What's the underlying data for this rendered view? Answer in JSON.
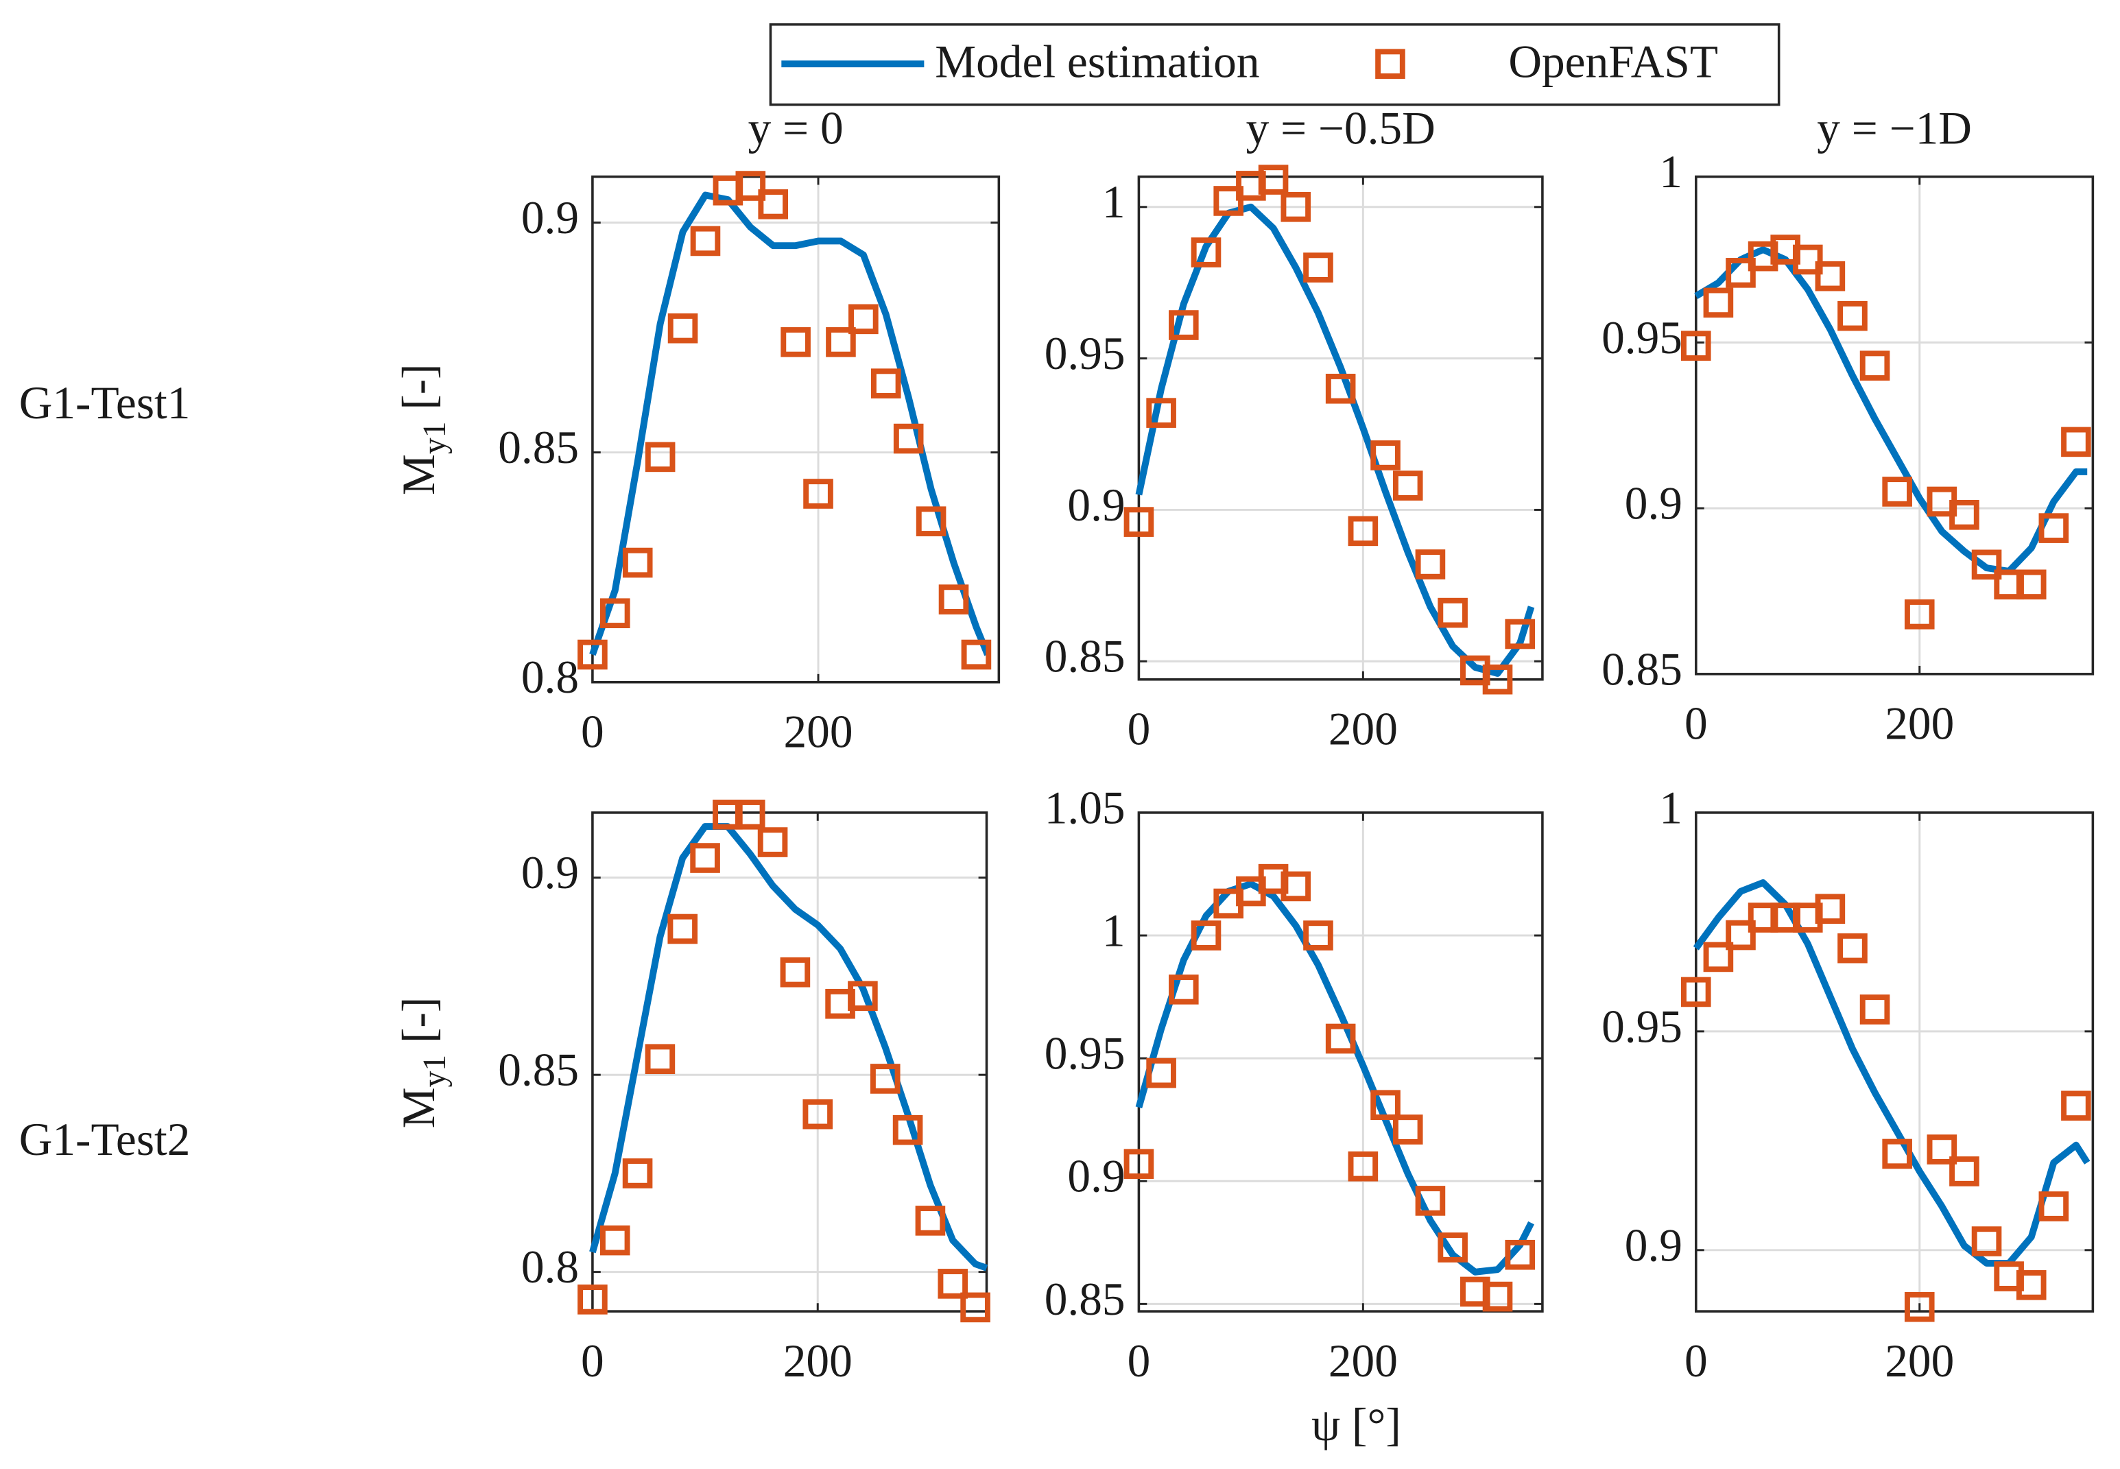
{
  "row_labels": [
    "G1-Test1",
    "G1-Test2"
  ],
  "y_label": {
    "main": "M",
    "sub": "y1",
    "unit": " [-]"
  },
  "x_label": "ψ  [°]",
  "chart_data": [
    {
      "type": "line",
      "title": "y = 0",
      "xlim": [
        0,
        360
      ],
      "xticks": [
        0,
        200
      ],
      "ylim": [
        0.8,
        0.91
      ],
      "yticks": [
        0.8,
        0.85,
        0.9
      ],
      "grid": true,
      "series": [
        {
          "name": "Model estimation",
          "color": "#0072bd",
          "marker": "none",
          "x": [
            0,
            20,
            40,
            60,
            80,
            100,
            120,
            140,
            160,
            180,
            200,
            220,
            240,
            260,
            280,
            300,
            320,
            340,
            350
          ],
          "values": [
            0.806,
            0.82,
            0.848,
            0.878,
            0.898,
            0.906,
            0.905,
            0.899,
            0.895,
            0.895,
            0.896,
            0.896,
            0.893,
            0.88,
            0.862,
            0.842,
            0.826,
            0.812,
            0.806
          ]
        },
        {
          "name": "OpenFAST",
          "color": "#d95319",
          "marker": "square",
          "x": [
            0,
            20,
            40,
            60,
            80,
            100,
            120,
            140,
            160,
            180,
            200,
            220,
            240,
            260,
            280,
            300,
            320,
            340
          ],
          "values": [
            0.806,
            0.815,
            0.826,
            0.849,
            0.877,
            0.896,
            0.907,
            0.908,
            0.904,
            0.874,
            0.841,
            0.874,
            0.879,
            0.865,
            0.853,
            0.835,
            0.818,
            0.806
          ]
        }
      ]
    },
    {
      "type": "line",
      "title": "y = −0.5D",
      "xlim": [
        0,
        360
      ],
      "xticks": [
        0,
        200
      ],
      "ylim": [
        0.844,
        1.01
      ],
      "yticks": [
        0.85,
        0.9,
        0.95,
        1
      ],
      "grid": true,
      "series": [
        {
          "name": "Model estimation",
          "color": "#0072bd",
          "marker": "none",
          "x": [
            0,
            20,
            40,
            60,
            80,
            100,
            120,
            140,
            160,
            180,
            200,
            220,
            240,
            260,
            280,
            300,
            320,
            340,
            350
          ],
          "values": [
            0.905,
            0.94,
            0.968,
            0.987,
            0.998,
            1.0,
            0.993,
            0.98,
            0.965,
            0.947,
            0.927,
            0.906,
            0.886,
            0.868,
            0.855,
            0.848,
            0.846,
            0.856,
            0.868
          ]
        },
        {
          "name": "OpenFAST",
          "color": "#d95319",
          "marker": "square",
          "x": [
            0,
            20,
            40,
            60,
            80,
            100,
            120,
            140,
            160,
            180,
            200,
            220,
            240,
            260,
            280,
            300,
            320,
            340
          ],
          "values": [
            0.896,
            0.932,
            0.961,
            0.985,
            1.002,
            1.007,
            1.009,
            1.0,
            0.98,
            0.94,
            0.893,
            0.918,
            0.908,
            0.882,
            0.866,
            0.847,
            0.844,
            0.859
          ]
        }
      ]
    },
    {
      "type": "line",
      "title": "y = −1D",
      "xlim": [
        0,
        355
      ],
      "xticks": [
        0,
        200
      ],
      "ylim": [
        0.85,
        1.0
      ],
      "yticks": [
        0.85,
        0.9,
        0.95,
        1
      ],
      "grid": true,
      "series": [
        {
          "name": "Model estimation",
          "color": "#0072bd",
          "marker": "none",
          "x": [
            0,
            20,
            40,
            60,
            80,
            100,
            120,
            140,
            160,
            180,
            200,
            220,
            240,
            260,
            280,
            300,
            320,
            340,
            350
          ],
          "values": [
            0.964,
            0.968,
            0.975,
            0.978,
            0.975,
            0.966,
            0.954,
            0.94,
            0.927,
            0.915,
            0.903,
            0.893,
            0.887,
            0.882,
            0.881,
            0.888,
            0.902,
            0.911,
            0.911
          ]
        },
        {
          "name": "OpenFAST",
          "color": "#d95319",
          "marker": "square",
          "x": [
            0,
            20,
            40,
            60,
            80,
            100,
            120,
            140,
            160,
            180,
            200,
            220,
            240,
            260,
            280,
            300,
            320,
            340
          ],
          "values": [
            0.949,
            0.962,
            0.971,
            0.976,
            0.978,
            0.975,
            0.97,
            0.958,
            0.943,
            0.905,
            0.868,
            0.902,
            0.898,
            0.883,
            0.877,
            0.877,
            0.894,
            0.92
          ]
        }
      ]
    },
    {
      "type": "line",
      "xlim": [
        0,
        350
      ],
      "xticks": [
        0,
        200
      ],
      "ylim": [
        0.79,
        0.9165
      ],
      "yticks": [
        0.8,
        0.85,
        0.9
      ],
      "grid": true,
      "series": [
        {
          "name": "Model estimation",
          "color": "#0072bd",
          "marker": "none",
          "x": [
            0,
            20,
            40,
            60,
            80,
            100,
            120,
            140,
            160,
            180,
            200,
            220,
            240,
            260,
            280,
            300,
            320,
            340,
            350
          ],
          "values": [
            0.805,
            0.825,
            0.855,
            0.885,
            0.905,
            0.913,
            0.913,
            0.906,
            0.898,
            0.892,
            0.888,
            0.882,
            0.872,
            0.857,
            0.84,
            0.822,
            0.808,
            0.802,
            0.801
          ]
        },
        {
          "name": "OpenFAST",
          "color": "#d95319",
          "marker": "square",
          "x": [
            0,
            20,
            40,
            60,
            80,
            100,
            120,
            140,
            160,
            180,
            200,
            220,
            240,
            260,
            280,
            300,
            320,
            340
          ],
          "values": [
            0.793,
            0.808,
            0.825,
            0.854,
            0.887,
            0.905,
            0.916,
            0.916,
            0.909,
            0.876,
            0.84,
            0.868,
            0.87,
            0.849,
            0.836,
            0.813,
            0.797,
            0.791
          ]
        }
      ]
    },
    {
      "type": "line",
      "xlim": [
        0,
        360
      ],
      "xticks": [
        0,
        200
      ],
      "ylim": [
        0.847,
        1.05
      ],
      "yticks": [
        0.85,
        0.9,
        0.95,
        1,
        1.05
      ],
      "grid": true,
      "series": [
        {
          "name": "Model estimation",
          "color": "#0072bd",
          "marker": "none",
          "x": [
            0,
            20,
            40,
            60,
            80,
            100,
            120,
            140,
            160,
            180,
            200,
            220,
            240,
            260,
            280,
            300,
            320,
            340,
            350
          ],
          "values": [
            0.93,
            0.962,
            0.99,
            1.008,
            1.018,
            1.021,
            1.016,
            1.004,
            0.988,
            0.968,
            0.947,
            0.925,
            0.903,
            0.884,
            0.87,
            0.863,
            0.864,
            0.874,
            0.883
          ]
        },
        {
          "name": "OpenFAST",
          "color": "#d95319",
          "marker": "square",
          "x": [
            0,
            20,
            40,
            60,
            80,
            100,
            120,
            140,
            160,
            180,
            200,
            220,
            240,
            260,
            280,
            300,
            320,
            340
          ],
          "values": [
            0.907,
            0.944,
            0.978,
            1.0,
            1.013,
            1.018,
            1.023,
            1.02,
            1.0,
            0.958,
            0.906,
            0.931,
            0.921,
            0.892,
            0.873,
            0.855,
            0.853,
            0.87
          ]
        }
      ]
    },
    {
      "type": "line",
      "xlim": [
        0,
        355
      ],
      "xticks": [
        0,
        200
      ],
      "ylim": [
        0.886,
        1.0
      ],
      "yticks": [
        0.9,
        0.95,
        1
      ],
      "grid": true,
      "series": [
        {
          "name": "Model estimation",
          "color": "#0072bd",
          "marker": "none",
          "x": [
            0,
            20,
            40,
            60,
            80,
            100,
            120,
            140,
            160,
            180,
            200,
            220,
            240,
            260,
            280,
            300,
            320,
            340,
            350
          ],
          "values": [
            0.969,
            0.976,
            0.982,
            0.984,
            0.979,
            0.97,
            0.958,
            0.946,
            0.936,
            0.927,
            0.918,
            0.91,
            0.901,
            0.897,
            0.897,
            0.903,
            0.92,
            0.924,
            0.92
          ]
        },
        {
          "name": "OpenFAST",
          "color": "#d95319",
          "marker": "square",
          "x": [
            0,
            20,
            40,
            60,
            80,
            100,
            120,
            140,
            160,
            180,
            200,
            220,
            240,
            260,
            280,
            300,
            320,
            340
          ],
          "values": [
            0.959,
            0.967,
            0.972,
            0.976,
            0.976,
            0.976,
            0.978,
            0.969,
            0.955,
            0.922,
            0.887,
            0.923,
            0.918,
            0.902,
            0.894,
            0.892,
            0.91,
            0.933
          ]
        }
      ]
    }
  ]
}
